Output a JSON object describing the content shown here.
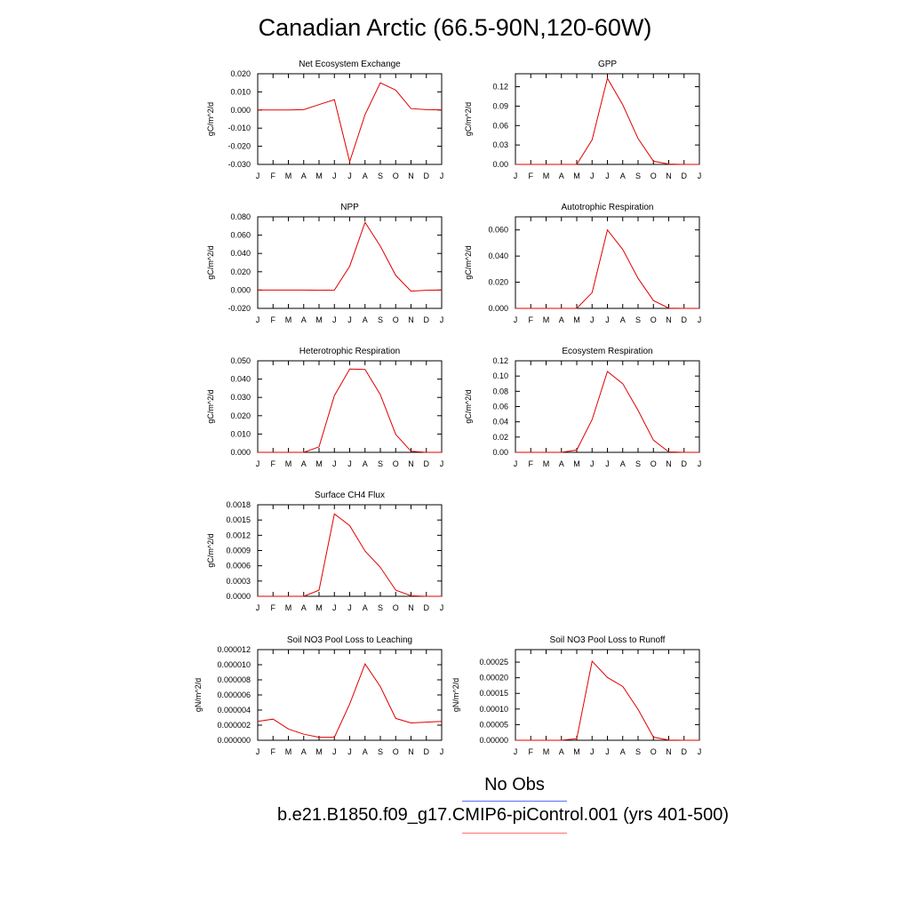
{
  "title": "Canadian Arctic (66.5-90N,120-60W)",
  "legend": {
    "obs_label": "No Obs",
    "obs_color": "#5a6cff",
    "model_label": "b.e21.B1850.f09_g17.CMIP6-piControl.001 (yrs 401-500)",
    "model_color": "#ff7070"
  },
  "colors": {
    "line": "#e00000",
    "axis": "#000000"
  },
  "chart_data": [
    {
      "type": "line",
      "title": "Net Ecosystem Exchange",
      "ylabel": "gC/m^2/d",
      "categories": [
        "J",
        "F",
        "M",
        "A",
        "M",
        "J",
        "J",
        "A",
        "S",
        "O",
        "N",
        "D",
        "J"
      ],
      "ylim": [
        -0.03,
        0.02
      ],
      "yticks": [
        "0.020",
        "0.010",
        "0.000",
        "-0.010",
        "-0.020",
        "-0.030"
      ],
      "values": [
        0.0,
        0.0,
        0.0,
        0.0002,
        0.003,
        0.0057,
        -0.0285,
        -0.0025,
        0.015,
        0.011,
        0.0008,
        0.0002,
        0.0001
      ]
    },
    {
      "type": "line",
      "title": "GPP",
      "ylabel": "gC/m^2/d",
      "categories": [
        "J",
        "F",
        "M",
        "A",
        "M",
        "J",
        "J",
        "A",
        "S",
        "O",
        "N",
        "D",
        "J"
      ],
      "ylim": [
        0,
        0.14
      ],
      "yticks": [
        "0.12",
        "0.09",
        "0.06",
        "0.03",
        "0.00"
      ],
      "values": [
        0,
        0,
        0,
        0,
        0,
        0.038,
        0.133,
        0.092,
        0.04,
        0.005,
        0.0005,
        0,
        0
      ]
    },
    {
      "type": "line",
      "title": "NPP",
      "ylabel": "gC/m^2/d",
      "categories": [
        "J",
        "F",
        "M",
        "A",
        "M",
        "J",
        "J",
        "A",
        "S",
        "O",
        "N",
        "D",
        "J"
      ],
      "ylim": [
        -0.02,
        0.08
      ],
      "yticks": [
        "0.080",
        "0.060",
        "0.040",
        "0.020",
        "0.000",
        "-0.020"
      ],
      "values": [
        0,
        0,
        0,
        0,
        -0.0002,
        0.0,
        0.026,
        0.074,
        0.048,
        0.016,
        -0.0012,
        -0.0002,
        0.0
      ]
    },
    {
      "type": "line",
      "title": "Autotrophic Respiration",
      "ylabel": "gC/m^2/d",
      "categories": [
        "J",
        "F",
        "M",
        "A",
        "M",
        "J",
        "J",
        "A",
        "S",
        "O",
        "N",
        "D",
        "J"
      ],
      "ylim": [
        0,
        0.07
      ],
      "yticks": [
        "0.060",
        "0.040",
        "0.020",
        "0.000"
      ],
      "values": [
        0,
        0,
        0,
        0,
        0,
        0.012,
        0.06,
        0.045,
        0.023,
        0.006,
        0.0002,
        0,
        0
      ]
    },
    {
      "type": "line",
      "title": "Heterotrophic Respiration",
      "ylabel": "gC/m^2/d",
      "categories": [
        "J",
        "F",
        "M",
        "A",
        "M",
        "J",
        "J",
        "A",
        "S",
        "O",
        "N",
        "D",
        "J"
      ],
      "ylim": [
        0,
        0.05
      ],
      "yticks": [
        "0.050",
        "0.040",
        "0.030",
        "0.020",
        "0.010",
        "0.000"
      ],
      "values": [
        0,
        0,
        0,
        0,
        0.003,
        0.031,
        0.0455,
        0.0453,
        0.0315,
        0.0098,
        0.0006,
        0,
        0
      ]
    },
    {
      "type": "line",
      "title": "Ecosystem Respiration",
      "ylabel": "gC/m^2/d",
      "categories": [
        "J",
        "F",
        "M",
        "A",
        "M",
        "J",
        "J",
        "A",
        "S",
        "O",
        "N",
        "D",
        "J"
      ],
      "ylim": [
        0,
        0.12
      ],
      "yticks": [
        "0.12",
        "0.10",
        "0.08",
        "0.06",
        "0.04",
        "0.02",
        "0.00"
      ],
      "values": [
        0,
        0,
        0,
        0,
        0.003,
        0.043,
        0.106,
        0.09,
        0.055,
        0.016,
        0.0006,
        0,
        0
      ]
    },
    {
      "type": "line",
      "title": "Surface CH4 Flux",
      "ylabel": "gC/m^2/d",
      "categories": [
        "J",
        "F",
        "M",
        "A",
        "M",
        "J",
        "J",
        "A",
        "S",
        "O",
        "N",
        "D",
        "J"
      ],
      "ylim": [
        0,
        0.0018
      ],
      "yticks": [
        "0.0018",
        "0.0015",
        "0.0012",
        "0.0009",
        "0.0006",
        "0.0003",
        "0.0000"
      ],
      "values": [
        0,
        0,
        0,
        0,
        0.00012,
        0.00162,
        0.00139,
        0.00089,
        0.00057,
        0.00012,
        1e-05,
        0,
        0
      ]
    },
    {
      "type": "line",
      "title": "Soil NO3 Pool Loss to Leaching",
      "ylabel": "gN/m^2/d",
      "categories": [
        "J",
        "F",
        "M",
        "A",
        "M",
        "J",
        "J",
        "A",
        "S",
        "O",
        "N",
        "D",
        "J"
      ],
      "ylim": [
        0,
        1.2e-05
      ],
      "yticks": [
        "0.000012",
        "0.000010",
        "0.000008",
        "0.000006",
        "0.000004",
        "0.000002",
        "0.000000"
      ],
      "values": [
        2.5e-06,
        2.8e-06,
        1.5e-06,
        8e-07,
        4e-07,
        4e-07,
        4.8e-06,
        1.01e-05,
        7.1e-06,
        2.9e-06,
        2.3e-06,
        2.4e-06,
        2.5e-06
      ]
    },
    {
      "type": "line",
      "title": "Soil NO3 Pool Loss to Runoff",
      "ylabel": "gN/m^2/d",
      "categories": [
        "J",
        "F",
        "M",
        "A",
        "M",
        "J",
        "J",
        "A",
        "S",
        "O",
        "N",
        "D",
        "J"
      ],
      "ylim": [
        0,
        0.00029
      ],
      "yticks": [
        "0.00025",
        "0.00020",
        "0.00015",
        "0.00010",
        "0.00005",
        "0.00000"
      ],
      "values": [
        0,
        0,
        0,
        0,
        5e-06,
        0.000253,
        0.000201,
        0.000172,
        9.9e-05,
        1e-05,
        5e-07,
        0,
        0
      ]
    }
  ]
}
